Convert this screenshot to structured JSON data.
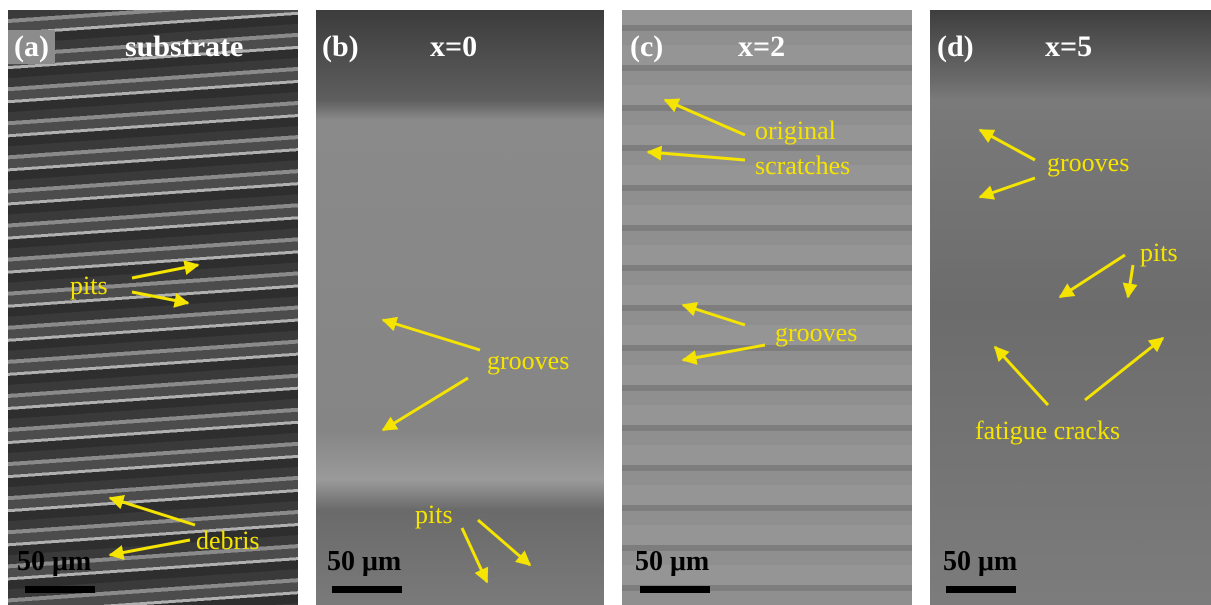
{
  "panels": [
    {
      "label": "(a)",
      "title": "substrate",
      "annotations": [
        "pits",
        "debris"
      ],
      "scale": "50 μm"
    },
    {
      "label": "(b)",
      "title": "x=0",
      "annotations": [
        "grooves",
        "pits"
      ],
      "scale": "50 μm"
    },
    {
      "label": "(c)",
      "title": "x=2",
      "annotations": [
        "original scratches",
        "grooves"
      ],
      "scale": "50 μm"
    },
    {
      "label": "(d)",
      "title": "x=5",
      "annotations": [
        "grooves",
        "pits",
        "fatigue cracks"
      ],
      "scale": "50 μm"
    }
  ]
}
